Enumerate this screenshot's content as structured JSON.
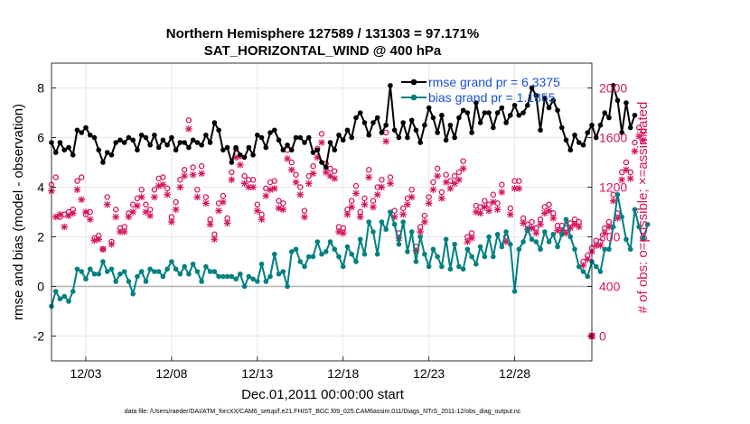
{
  "chart_data": {
    "type": "line",
    "title": "Northern Hemisphere 127589 / 131303 = 97.171%",
    "subtitle": "SAT_HORIZONTAL_WIND @ 400 hPa",
    "xlabel": "Dec.01,2011 00:00:00 start",
    "ylabel_left": "rmse and bias (model - observation)",
    "ylabel_right": "# of obs: o=possible; ×=assimilated",
    "x_ticks": [
      "12/03",
      "12/08",
      "12/13",
      "12/18",
      "12/23",
      "12/28"
    ],
    "x_tick_days": [
      3,
      8,
      13,
      18,
      23,
      28
    ],
    "xlim": [
      1,
      32.5
    ],
    "ylim_left": [
      -3,
      9
    ],
    "ylim_right": [
      -200,
      2200
    ],
    "y_ticks_left": [
      "-2",
      "0",
      "2",
      "4",
      "6",
      "8"
    ],
    "y_ticks_right": [
      "0",
      "400",
      "800",
      "1200",
      "1600",
      "2000"
    ],
    "grid": true,
    "legend_position": "top-right",
    "colors": {
      "rmse": "#000000",
      "bias": "#008080",
      "obs": "#d6135e",
      "zero_line": "#b0b0b0"
    },
    "series": [
      {
        "name": "rmse grand pr = 6.3375",
        "axis": "left",
        "x_start": 1.0,
        "x_step": 0.25,
        "values": [
          5.8,
          5.4,
          5.8,
          5.5,
          5.6,
          5.3,
          6.3,
          6.2,
          6.4,
          6.1,
          6.0,
          5.5,
          5.0,
          5.4,
          5.3,
          5.8,
          5.9,
          5.8,
          6.0,
          5.9,
          5.5,
          6.1,
          6.0,
          5.7,
          6.1,
          5.6,
          5.9,
          5.7,
          6.0,
          5.5,
          5.8,
          5.8,
          5.6,
          5.9,
          5.8,
          5.7,
          6.1,
          5.8,
          6.6,
          6.3,
          5.5,
          5.6,
          5.0,
          5.6,
          5.3,
          5.2,
          5.6,
          5.3,
          6.1,
          6.0,
          5.6,
          6.2,
          6.3,
          5.9,
          5.5,
          5.7,
          5.5,
          6.0,
          6.0,
          5.8,
          6.0,
          5.4,
          5.5,
          5.0,
          4.8,
          5.8,
          5.5,
          6.1,
          5.9,
          6.3,
          6.0,
          6.8,
          7.0,
          6.6,
          6.1,
          6.6,
          6.8,
          6.2,
          6.5,
          8.1,
          6.3,
          6.0,
          6.6,
          6.0,
          6.7,
          6.3,
          5.8,
          6.5,
          7.2,
          6.8,
          6.2,
          6.9,
          5.9,
          6.5,
          6.0,
          6.8,
          7.1,
          7.0,
          6.2,
          7.4,
          6.6,
          7.0,
          7.0,
          6.4,
          7.0,
          7.2,
          6.6,
          6.9,
          7.3,
          6.9,
          7.0,
          7.3,
          8.0,
          7.7,
          6.3,
          7.6,
          7.2,
          7.5,
          7.1,
          6.4,
          5.9,
          5.5,
          6.1,
          5.8,
          5.7,
          6.2,
          6.5,
          6.0,
          6.5,
          7.0,
          6.8,
          8.1,
          7.5,
          6.2,
          7.4,
          6.4,
          6.9
        ]
      },
      {
        "name": "bias grand pr = 1.1855",
        "axis": "left",
        "x_start": 1.0,
        "x_step": 0.25,
        "values": [
          -0.8,
          -0.2,
          -0.5,
          -0.4,
          -0.6,
          -0.2,
          0.7,
          0.6,
          0.3,
          0.7,
          0.5,
          0.5,
          1.0,
          0.6,
          0.7,
          0.2,
          0.5,
          0.6,
          0.2,
          -0.3,
          0.4,
          0.6,
          0.2,
          0.7,
          0.6,
          0.6,
          0.4,
          0.7,
          1.0,
          0.7,
          0.5,
          0.8,
          0.5,
          0.9,
          0.6,
          0.2,
          0.8,
          0.6,
          0.6,
          0.4,
          0.4,
          0.4,
          0.4,
          0.3,
          0.5,
          0.0,
          0.4,
          0.3,
          0.2,
          0.9,
          0.2,
          0.4,
          1.3,
          0.5,
          0.6,
          0.0,
          1.4,
          1.5,
          1.0,
          0.8,
          1.2,
          1.2,
          1.8,
          1.3,
          1.4,
          1.8,
          1.5,
          1.2,
          0.8,
          1.6,
          1.3,
          1.0,
          1.9,
          1.3,
          2.6,
          2.2,
          1.3,
          2.6,
          2.3,
          3.0,
          2.5,
          1.7,
          2.6,
          1.4,
          2.2,
          1.0,
          2.0,
          1.3,
          0.8,
          1.5,
          1.2,
          0.8,
          1.9,
          0.7,
          1.7,
          0.8,
          0.7,
          1.5,
          1.2,
          0.9,
          1.6,
          1.2,
          2.0,
          1.2,
          2.1,
          1.6,
          2.2,
          1.7,
          -0.2,
          1.5,
          1.8,
          2.3,
          1.9,
          1.8,
          1.5,
          2.2,
          1.8,
          2.1,
          1.6,
          2.1,
          2.7,
          2.0,
          1.5,
          0.8,
          0.6,
          0.4,
          1.0,
          0.8,
          0.6,
          1.5,
          1.5,
          2.4,
          3.7,
          2.8,
          1.9,
          1.5,
          3.1,
          2.4,
          1.9,
          2.5
        ]
      },
      {
        "name": "possible obs",
        "axis": "right",
        "marker": "o",
        "x_start": 1.0,
        "x_step": 0.25,
        "values": [
          1220,
          1280,
          960,
          980,
          1000,
          1020,
          1250,
          1280,
          980,
          1000,
          790,
          810,
          700,
          1120,
          760,
          1020,
          870,
          880,
          990,
          1060,
          1110,
          1180,
          1060,
          1020,
          1180,
          1270,
          1280,
          1190,
          960,
          1080,
          1260,
          1340,
          1740,
          1360,
          1180,
          1370,
          1120,
          940,
          820,
          1070,
          1130,
          950,
          1320,
          1510,
          1450,
          1290,
          1260,
          1260,
          1060,
          980,
          1190,
          1240,
          1250,
          1090,
          1070,
          1500,
          1400,
          1300,
          1200,
          1010,
          1290,
          1370,
          1510,
          1630,
          1390,
          1350,
          1330,
          880,
          870,
          1020,
          1090,
          1210,
          1000,
          1110,
          1340,
          1090,
          1200,
          1260,
          1640,
          1280,
          1010,
          830,
          1030,
          1110,
          1180,
          720,
          880,
          970,
          1120,
          1240,
          1350,
          1160,
          1300,
          1250,
          1290,
          1320,
          1410,
          800,
          830,
          1050,
          1040,
          1090,
          1060,
          1140,
          1070,
          1220,
          800,
          1030,
          1250,
          1250,
          950,
          900,
          920,
          870,
          940,
          1040,
          1060,
          990,
          890,
          890,
          870,
          910,
          940,
          920,
          600,
          650,
          710,
          770,
          760,
          870,
          920,
          1140,
          990,
          1320,
          1400,
          1320,
          1560,
          1680,
          1650
        ]
      },
      {
        "name": "assimilated obs",
        "axis": "right",
        "marker": "x",
        "x_start": 1.0,
        "x_step": 0.25,
        "values": [
          1170,
          960,
          980,
          880,
          970,
          990,
          1180,
          1100,
          1000,
          940,
          770,
          780,
          700,
          1060,
          740,
          960,
          840,
          840,
          960,
          1000,
          1050,
          1120,
          1000,
          970,
          1120,
          1210,
          1220,
          1140,
          920,
          1020,
          1200,
          1290,
          1670,
          1300,
          1120,
          1310,
          1070,
          900,
          780,
          1010,
          1080,
          910,
          1260,
          1440,
          1380,
          1230,
          1200,
          1200,
          1010,
          940,
          1130,
          1180,
          1190,
          1030,
          1020,
          1430,
          1340,
          1240,
          1140,
          960,
          1230,
          1310,
          1440,
          1560,
          1320,
          1290,
          1270,
          840,
          830,
          980,
          1040,
          1150,
          960,
          1060,
          1280,
          1040,
          1140,
          1200,
          1570,
          1230,
          960,
          790,
          980,
          1060,
          1120,
          690,
          840,
          920,
          1070,
          1180,
          1290,
          1110,
          1240,
          1190,
          1230,
          1260,
          1350,
          760,
          790,
          1000,
          990,
          1040,
          1010,
          1080,
          1020,
          1160,
          760,
          980,
          1190,
          1190,
          910,
          860,
          870,
          830,
          900,
          990,
          1010,
          950,
          850,
          850,
          830,
          870,
          900,
          880,
          570,
          620,
          680,
          730,
          730,
          830,
          880,
          1090,
          950,
          1260,
          1340,
          1270,
          1490,
          1610,
          1580
        ]
      }
    ],
    "extra_point": {
      "label": "0",
      "axis": "right",
      "x": 32.5,
      "value": 0
    }
  },
  "footer": "data file: /Users/raeder/DAI/ATM_forcXX/CAM6_setup/f.e21.FHIST_BGC.f09_025.CAM6assim.011/Diags_NTrS_2011-12/obs_diag_output.nc"
}
